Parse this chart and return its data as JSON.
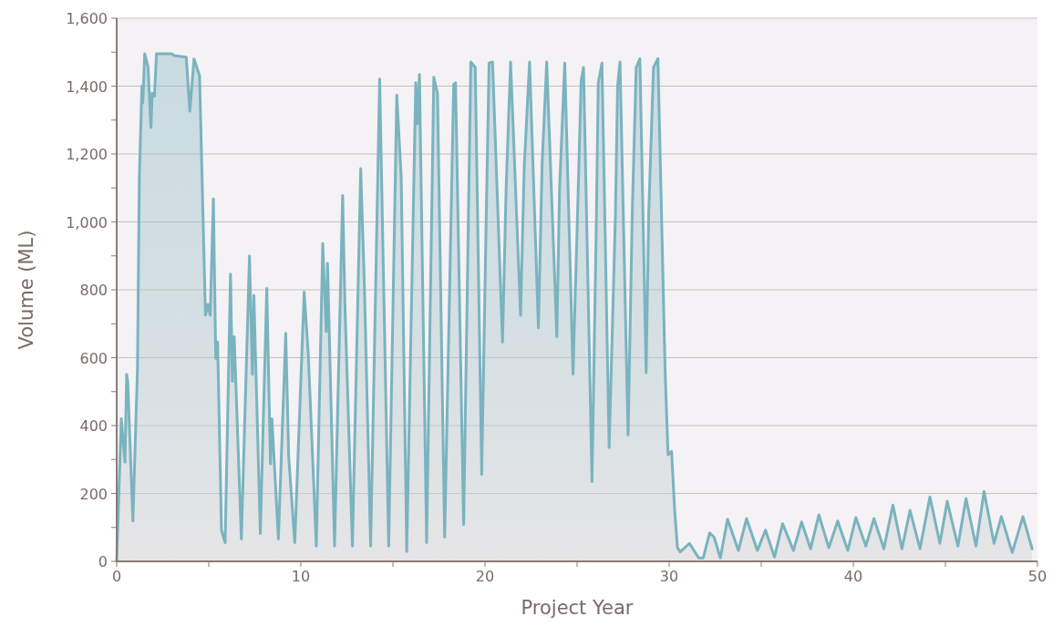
{
  "chart_data": {
    "type": "area",
    "xlabel": "Project Year",
    "ylabel": "Volume (ML)",
    "color": "#7ab3be",
    "grid": "y",
    "xlim": [
      0,
      50
    ],
    "xticks": [
      0,
      {
        "value": 5,
        "label": null
      },
      10,
      {
        "value": 15,
        "label": null
      },
      20,
      {
        "value": 25,
        "label": null
      },
      30,
      {
        "value": 35,
        "label": null
      },
      40,
      {
        "value": 45,
        "label": null
      },
      50
    ],
    "ylim": [
      0,
      1600
    ],
    "yticks": [
      {
        "value": 0,
        "label": "0"
      },
      {
        "value": 100,
        "label": null
      },
      {
        "value": 200,
        "label": "200"
      },
      {
        "value": 300,
        "label": null
      },
      {
        "value": 400,
        "label": "400"
      },
      {
        "value": 500,
        "label": null
      },
      {
        "value": 600,
        "label": "600"
      },
      {
        "value": 700,
        "label": null
      },
      {
        "value": 800,
        "label": "800"
      },
      {
        "value": 900,
        "label": null
      },
      {
        "value": 1000,
        "label": "1,000"
      },
      {
        "value": 1100,
        "label": null
      },
      {
        "value": 1200,
        "label": "1,200"
      },
      {
        "value": 1300,
        "label": null
      },
      {
        "value": 1400,
        "label": "1,400"
      },
      {
        "value": 1500,
        "label": null
      },
      {
        "value": 1600,
        "label": "1,600"
      }
    ],
    "x": [
      0,
      0.25,
      0.45,
      0.54,
      0.6,
      0.88,
      1.13,
      1.23,
      1.37,
      1.42,
      1.52,
      1.7,
      1.86,
      1.93,
      2.05,
      2.16,
      2.99,
      3.13,
      3.78,
      3.97,
      4.2,
      4.5,
      4.82,
      4.95,
      5.08,
      5.25,
      5.38,
      5.48,
      5.69,
      5.89,
      6.18,
      6.28,
      6.38,
      6.77,
      7.21,
      7.37,
      7.45,
      7.8,
      8.15,
      8.35,
      8.43,
      8.78,
      9.18,
      9.34,
      9.67,
      10.18,
      10.4,
      10.84,
      11.19,
      11.38,
      11.45,
      11.83,
      12.27,
      12.39,
      12.8,
      13.25,
      13.45,
      13.79,
      14.28,
      14.77,
      15.21,
      15.45,
      15.75,
      16.24,
      16.34,
      16.44,
      16.83,
      17.22,
      17.42,
      17.81,
      18.3,
      18.4,
      18.84,
      19.23,
      19.47,
      19.82,
      20.05,
      20.22,
      20.41,
      20.95,
      21.15,
      21.39,
      21.93,
      22.13,
      22.42,
      22.9,
      23.1,
      23.35,
      23.9,
      24.05,
      24.33,
      24.78,
      25.04,
      25.22,
      25.35,
      25.81,
      26.05,
      26.15,
      26.35,
      26.74,
      27.08,
      27.2,
      27.33,
      27.77,
      28.0,
      28.21,
      28.41,
      28.75,
      28.89,
      29.15,
      29.39,
      29.78,
      29.94,
      30.13,
      30.3,
      30.45,
      30.6,
      31.1,
      31.6,
      31.85,
      32.2,
      32.44,
      32.78,
      33.17,
      33.76,
      34.2,
      34.79,
      35.23,
      35.72,
      36.16,
      36.75,
      37.19,
      37.68,
      38.13,
      38.67,
      39.15,
      39.7,
      40.14,
      40.68,
      41.12,
      41.66,
      42.15,
      42.64,
      43.08,
      43.62,
      44.16,
      44.7,
      45.1,
      45.68,
      46.12,
      46.66,
      47.1,
      47.64,
      48.04,
      48.63,
      49.21,
      49.71
    ],
    "values": [
      0,
      420,
      292,
      551,
      530,
      119,
      572,
      1131,
      1400,
      1350,
      1495,
      1458,
      1278,
      1379,
      1370,
      1495,
      1495,
      1490,
      1485,
      1326,
      1480,
      1431,
      725,
      757,
      725,
      1068,
      598,
      646,
      92,
      55,
      846,
      530,
      662,
      66,
      899,
      551,
      783,
      82,
      804,
      287,
      420,
      66,
      672,
      308,
      55,
      793,
      614,
      45,
      936,
      677,
      878,
      45,
      1078,
      762,
      45,
      1157,
      814,
      45,
      1421,
      45,
      1373,
      1131,
      29,
      1410,
      1289,
      1434,
      55,
      1426,
      1379,
      71,
      1405,
      1410,
      108,
      1471,
      1455,
      256,
      962,
      1468,
      1471,
      646,
      1104,
      1471,
      725,
      1162,
      1471,
      688,
      1168,
      1471,
      662,
      1099,
      1468,
      551,
      1052,
      1415,
      1455,
      235,
      1015,
      1410,
      1468,
      335,
      1015,
      1400,
      1471,
      372,
      1036,
      1455,
      1481,
      556,
      1026,
      1455,
      1481,
      561,
      314,
      324,
      150,
      40,
      28,
      53,
      10,
      10,
      84,
      71,
      10,
      124,
      32,
      126,
      32,
      92,
      13,
      111,
      32,
      116,
      37,
      137,
      40,
      119,
      32,
      129,
      45,
      126,
      37,
      166,
      37,
      150,
      37,
      190,
      53,
      177,
      45,
      185,
      45,
      206,
      53,
      132,
      26,
      132,
      37
    ]
  }
}
